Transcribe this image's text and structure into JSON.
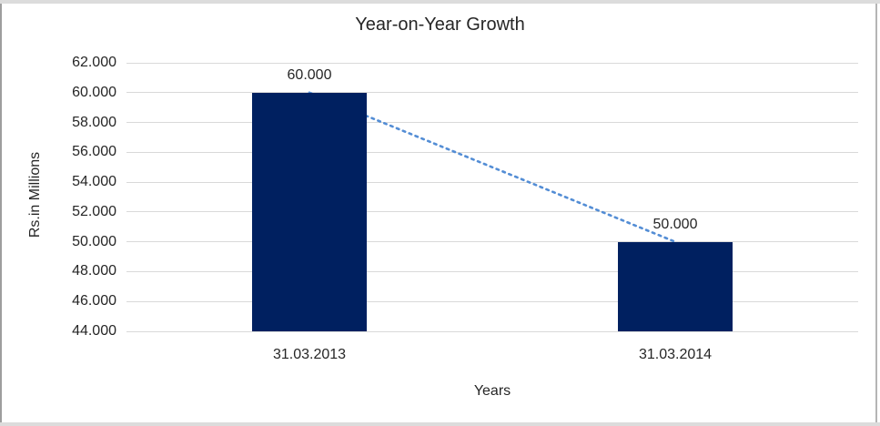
{
  "chart_data": {
    "type": "bar",
    "title": "Year-on-Year Growth",
    "xlabel": "Years",
    "ylabel": "Rs.in Millions",
    "categories": [
      "31.03.2013",
      "31.03.2014"
    ],
    "values": [
      60000,
      50000
    ],
    "data_labels": [
      "60.000",
      "50.000"
    ],
    "ytick_labels": [
      "62.000",
      "60.000",
      "58.000",
      "56.000",
      "54.000",
      "52.000",
      "50.000",
      "48.000",
      "46.000",
      "44.000"
    ],
    "ytick_values": [
      62000,
      60000,
      58000,
      56000,
      54000,
      52000,
      50000,
      48000,
      46000,
      44000
    ],
    "ylim": [
      44000,
      62000
    ],
    "grid": "horizontal",
    "legend": "none",
    "trendline": {
      "type": "linear",
      "style": "dotted",
      "from_value": 60000,
      "to_value": 50000
    },
    "colors": {
      "bar": "#002060",
      "gridline": "#d9d9d9",
      "trendline": "#538dd5",
      "text": "#262626",
      "frame": "#dcdcdc"
    }
  }
}
